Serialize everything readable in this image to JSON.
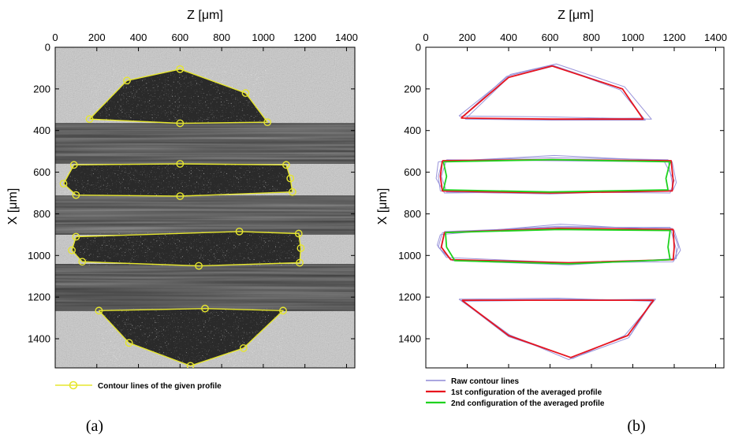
{
  "chart_data": [
    {
      "panel": "a",
      "type": "line",
      "panel_label": "(a)",
      "xlabel": "Z [μm]",
      "ylabel": "X [μm]",
      "xlim": [
        0,
        1440
      ],
      "ylim": [
        1540,
        0
      ],
      "xticks": [
        "0",
        "200",
        "400",
        "600",
        "800",
        "1000",
        "1200",
        "1400"
      ],
      "yticks": [
        "0",
        "200",
        "400",
        "600",
        "800",
        "1000",
        "1200",
        "1400"
      ],
      "background": "grayscale micro-CT cross-section",
      "legend": [
        {
          "name": "Contour lines of the given profile",
          "color": "#e6e62e"
        }
      ],
      "series": [
        {
          "name": "Contour lines of the given profile",
          "color": "#e6e62e",
          "polygons": [
            [
              [
                165,
                345
              ],
              [
                345,
                160
              ],
              [
                600,
                105
              ],
              [
                915,
                220
              ],
              [
                1020,
                360
              ],
              [
                600,
                365
              ],
              [
                165,
                345
              ]
            ],
            [
              [
                90,
                565
              ],
              [
                600,
                560
              ],
              [
                1110,
                565
              ],
              [
                1130,
                630
              ],
              [
                1140,
                695
              ],
              [
                600,
                715
              ],
              [
                100,
                710
              ],
              [
                40,
                655
              ],
              [
                90,
                565
              ]
            ],
            [
              [
                100,
                910
              ],
              [
                885,
                885
              ],
              [
                1170,
                895
              ],
              [
                1180,
                965
              ],
              [
                1175,
                1035
              ],
              [
                690,
                1050
              ],
              [
                130,
                1030
              ],
              [
                80,
                975
              ],
              [
                100,
                910
              ]
            ],
            [
              [
                210,
                1265
              ],
              [
                720,
                1255
              ],
              [
                1095,
                1265
              ],
              [
                905,
                1445
              ],
              [
                650,
                1530
              ],
              [
                355,
                1420
              ],
              [
                210,
                1265
              ]
            ]
          ]
        }
      ]
    },
    {
      "panel": "b",
      "type": "line",
      "panel_label": "(b)",
      "xlabel": "Z [μm]",
      "ylabel": "X [μm]",
      "xlim": [
        0,
        1440
      ],
      "ylim": [
        1540,
        0
      ],
      "xticks": [
        "0",
        "200",
        "400",
        "600",
        "800",
        "1000",
        "1200",
        "1400"
      ],
      "yticks": [
        "0",
        "200",
        "400",
        "600",
        "800",
        "1000",
        "1200",
        "1400"
      ],
      "legend": [
        {
          "name": "Raw contour lines",
          "color": "#8e88d6"
        },
        {
          "name": "1st configuration of the averaged profile",
          "color": "#e8141e"
        },
        {
          "name": "2nd configuration of the averaged profile",
          "color": "#1fd21f"
        }
      ],
      "series": [
        {
          "name": "Raw contour lines",
          "color": "#8e88d6",
          "polygons": [
            [
              [
                170,
                340
              ],
              [
                390,
                140
              ],
              [
                610,
                85
              ],
              [
                950,
                200
              ],
              [
                1050,
                340
              ],
              [
                610,
                345
              ],
              [
                170,
                340
              ]
            ],
            [
              [
                160,
                330
              ],
              [
                410,
                130
              ],
              [
                630,
                80
              ],
              [
                960,
                190
              ],
              [
                1090,
                345
              ],
              [
                620,
                335
              ],
              [
                160,
                330
              ]
            ],
            [
              [
                190,
                345
              ],
              [
                400,
                145
              ],
              [
                620,
                90
              ],
              [
                940,
                205
              ],
              [
                1060,
                350
              ],
              [
                600,
                350
              ],
              [
                190,
                345
              ]
            ],
            [
              [
                80,
                545
              ],
              [
                600,
                530
              ],
              [
                1170,
                540
              ],
              [
                1190,
                650
              ],
              [
                1190,
                690
              ],
              [
                600,
                700
              ],
              [
                70,
                690
              ],
              [
                60,
                620
              ],
              [
                80,
                545
              ]
            ],
            [
              [
                60,
                550
              ],
              [
                620,
                520
              ],
              [
                1150,
                545
              ],
              [
                1200,
                640
              ],
              [
                1180,
                700
              ],
              [
                610,
                695
              ],
              [
                90,
                700
              ],
              [
                50,
                630
              ],
              [
                60,
                550
              ]
            ],
            [
              [
                100,
                540
              ],
              [
                600,
                545
              ],
              [
                1190,
                550
              ],
              [
                1210,
                650
              ],
              [
                1195,
                685
              ],
              [
                600,
                705
              ],
              [
                100,
                695
              ],
              [
                75,
                620
              ],
              [
                100,
                540
              ]
            ],
            [
              [
                80,
                890
              ],
              [
                640,
                860
              ],
              [
                1190,
                870
              ],
              [
                1220,
                960
              ],
              [
                1200,
                1020
              ],
              [
                700,
                1040
              ],
              [
                120,
                1020
              ],
              [
                60,
                960
              ],
              [
                80,
                890
              ]
            ],
            [
              [
                70,
                900
              ],
              [
                650,
                850
              ],
              [
                1200,
                880
              ],
              [
                1230,
                975
              ],
              [
                1195,
                1030
              ],
              [
                680,
                1035
              ],
              [
                100,
                1010
              ],
              [
                55,
                950
              ],
              [
                70,
                900
              ]
            ],
            [
              [
                90,
                885
              ],
              [
                630,
                865
              ],
              [
                1180,
                865
              ],
              [
                1210,
                970
              ],
              [
                1210,
                1015
              ],
              [
                690,
                1045
              ],
              [
                130,
                1025
              ],
              [
                70,
                970
              ],
              [
                90,
                885
              ]
            ],
            [
              [
                170,
                1215
              ],
              [
                620,
                1210
              ],
              [
                1100,
                1215
              ],
              [
                990,
                1380
              ],
              [
                700,
                1490
              ],
              [
                400,
                1390
              ],
              [
                170,
                1215
              ]
            ],
            [
              [
                160,
                1210
              ],
              [
                640,
                1205
              ],
              [
                1090,
                1220
              ],
              [
                980,
                1395
              ],
              [
                690,
                1500
              ],
              [
                390,
                1375
              ],
              [
                160,
                1210
              ]
            ],
            [
              [
                180,
                1220
              ],
              [
                610,
                1215
              ],
              [
                1110,
                1210
              ],
              [
                960,
                1385
              ],
              [
                710,
                1495
              ],
              [
                410,
                1385
              ],
              [
                180,
                1220
              ]
            ]
          ]
        },
        {
          "name": "1st configuration of the averaged profile",
          "color": "#e8141e",
          "polygons": [
            [
              [
                170,
                340
              ],
              [
                400,
                145
              ],
              [
                610,
                90
              ],
              [
                950,
                200
              ],
              [
                1050,
                345
              ],
              [
                610,
                345
              ],
              [
                170,
                340
              ]
            ],
            [
              [
                80,
                545
              ],
              [
                610,
                540
              ],
              [
                1185,
                545
              ],
              [
                1195,
                640
              ],
              [
                1190,
                690
              ],
              [
                600,
                700
              ],
              [
                80,
                690
              ],
              [
                70,
                620
              ],
              [
                80,
                545
              ]
            ],
            [
              [
                90,
                890
              ],
              [
                640,
                870
              ],
              [
                1195,
                875
              ],
              [
                1200,
                960
              ],
              [
                1195,
                1020
              ],
              [
                690,
                1035
              ],
              [
                120,
                1020
              ],
              [
                75,
                960
              ],
              [
                90,
                890
              ]
            ],
            [
              [
                175,
                1215
              ],
              [
                620,
                1215
              ],
              [
                1100,
                1215
              ],
              [
                975,
                1385
              ],
              [
                700,
                1490
              ],
              [
                400,
                1385
              ],
              [
                175,
                1215
              ]
            ]
          ]
        },
        {
          "name": "2nd configuration of the averaged profile",
          "color": "#1fd21f",
          "polygons": [
            [
              [
                85,
                550
              ],
              [
                610,
                540
              ],
              [
                1180,
                550
              ],
              [
                1160,
                630
              ],
              [
                1170,
                685
              ],
              [
                600,
                695
              ],
              [
                85,
                685
              ],
              [
                100,
                620
              ],
              [
                85,
                550
              ]
            ],
            [
              [
                95,
                890
              ],
              [
                640,
                875
              ],
              [
                1180,
                880
              ],
              [
                1170,
                960
              ],
              [
                1180,
                1020
              ],
              [
                690,
                1040
              ],
              [
                140,
                1025
              ],
              [
                100,
                960
              ],
              [
                95,
                890
              ]
            ]
          ]
        }
      ]
    }
  ]
}
